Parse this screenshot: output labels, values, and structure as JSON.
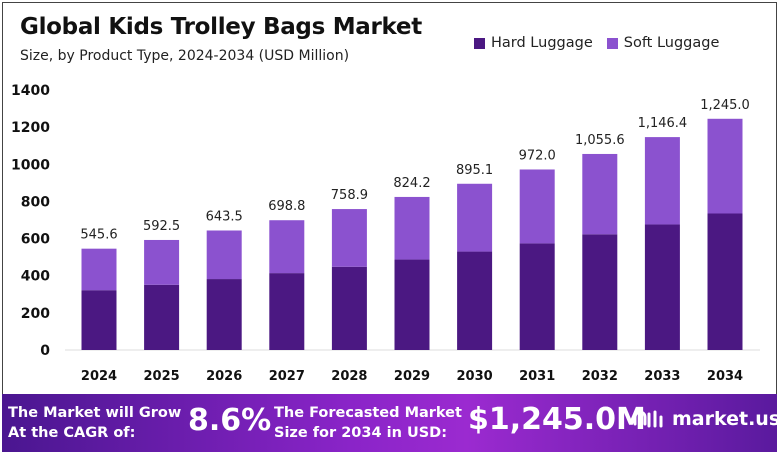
{
  "chart_data": {
    "type": "bar",
    "stacked": true,
    "title": "Global Kids Trolley Bags Market",
    "subtitle": "Size, by Product Type, 2024-2034 (USD Million)",
    "categories": [
      "2024",
      "2025",
      "2026",
      "2027",
      "2028",
      "2029",
      "2030",
      "2031",
      "2032",
      "2033",
      "2034"
    ],
    "totals": [
      "545.6",
      "592.5",
      "643.5",
      "698.8",
      "758.9",
      "824.2",
      "895.1",
      "972.0",
      "1,055.6",
      "1,146.4",
      "1,245.0"
    ],
    "total_values": [
      545.6,
      592.5,
      643.5,
      698.8,
      758.9,
      824.2,
      895.1,
      972.0,
      1055.6,
      1146.4,
      1245.0
    ],
    "series": [
      {
        "name": "Hard Luggage",
        "color": "#4b1882",
        "values": [
          322,
          351,
          382,
          414,
          448,
          487,
          530,
          574,
          623,
          676,
          735
        ]
      },
      {
        "name": "Soft Luggage",
        "color": "#8b52cf",
        "values": [
          223.6,
          241.5,
          261.5,
          284.8,
          310.9,
          337.2,
          365.1,
          398.0,
          432.6,
          470.4,
          510.0
        ]
      }
    ],
    "ylim": [
      0,
      1400
    ],
    "yticks": [
      "0",
      "200",
      "400",
      "600",
      "800",
      "1000",
      "1200",
      "1400"
    ],
    "grid": false,
    "legend_position": "top-right"
  },
  "footer": {
    "cagr_label_1": "The Market will Grow",
    "cagr_label_2": "At the CAGR of:",
    "cagr_value": "8.6%",
    "forecast_label_1": "The Forecasted Market",
    "forecast_label_2": "Size for 2034 in USD:",
    "forecast_value": "$1,245.0M",
    "logo_text": "market.us"
  }
}
